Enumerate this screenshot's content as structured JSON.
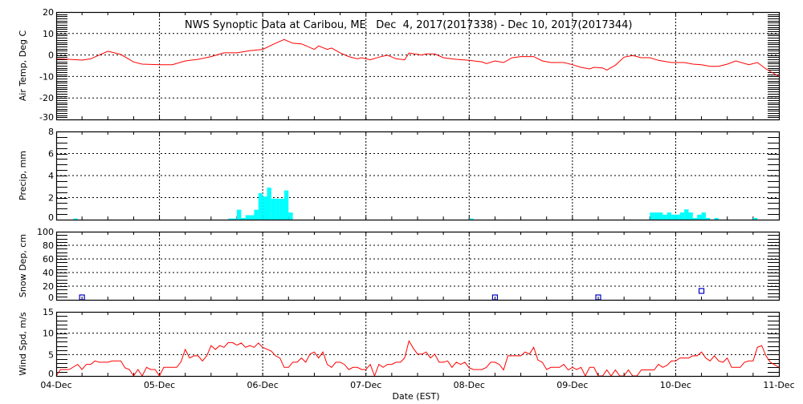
{
  "chart_data": [
    {
      "type": "line",
      "title": "NWS Synoptic Data at Caribou, ME   Dec  4, 2017(2017338) - Dec 10, 2017(2017344)",
      "ylabel": "Air Temp, Deg C",
      "xlabel": "Date (EST)",
      "ylim": [
        -30,
        20
      ],
      "yticks": [
        "20",
        "10",
        "0",
        "-10",
        "-20",
        "-30"
      ],
      "ytick_values": [
        20,
        10,
        0,
        -10,
        -20,
        -30
      ],
      "color": "#ff0000",
      "x_hours": [
        0,
        3,
        6,
        8,
        12,
        15,
        18,
        20,
        24,
        27,
        30,
        33,
        36,
        39,
        42,
        45,
        48,
        51,
        53,
        55,
        57,
        60,
        61,
        63,
        64,
        66,
        68,
        70,
        71,
        73,
        75,
        77,
        79,
        81,
        82,
        83,
        85,
        86,
        88,
        90,
        93,
        96,
        99,
        100,
        102,
        104,
        106,
        108,
        111,
        113,
        115,
        118,
        120,
        122,
        124,
        125,
        127,
        128,
        130,
        132,
        134,
        136,
        138,
        140,
        143,
        146,
        148,
        150,
        152,
        154,
        156,
        158,
        161,
        163,
        165,
        168
      ],
      "values": [
        -1.75,
        -2,
        -2.4,
        -1.8,
        1.75,
        0.25,
        -3.25,
        -4.25,
        -4.5,
        -4.5,
        -2.75,
        -2,
        -0.75,
        1,
        1,
        2,
        2.6,
        5.5,
        7.2,
        5.5,
        5.2,
        2.6,
        4.2,
        2.6,
        3.25,
        1,
        -0.75,
        -1.75,
        -1.25,
        -2.25,
        -1,
        -0.1,
        -1.75,
        -2.25,
        0.9,
        0.6,
        0,
        0.5,
        0.5,
        -1.25,
        -2,
        -2.5,
        -3.25,
        -4,
        -2.75,
        -3.5,
        -1.25,
        -0.75,
        -0.75,
        -2.75,
        -3.5,
        -3.5,
        -4.5,
        -5.75,
        -6.5,
        -5.75,
        -6,
        -7,
        -4.75,
        -1,
        -0.25,
        -1.25,
        -1.25,
        -2.5,
        -3.5,
        -3.5,
        -4.25,
        -4.5,
        -5.25,
        -5.25,
        -4.25,
        -2.75,
        -4.5,
        -3.5,
        -6.5,
        -10
      ]
    },
    {
      "type": "bar",
      "ylabel": "Precip, mm",
      "ylim": [
        0,
        8
      ],
      "yticks": [
        "8",
        "6",
        "4",
        "2",
        "0"
      ],
      "ytick_values": [
        8,
        6,
        4,
        2,
        0
      ],
      "color": "#00ffff",
      "x_hours": [
        4,
        40,
        41,
        42,
        43,
        44,
        45,
        46,
        47,
        48,
        49,
        50,
        51,
        52,
        53,
        54,
        96,
        138,
        139,
        140,
        141,
        142,
        143,
        144,
        145,
        146,
        147,
        148,
        149,
        150,
        151,
        153,
        162
      ],
      "values": [
        0.1,
        0.1,
        0.1,
        0.9,
        0.15,
        0.4,
        0.4,
        0.9,
        2.4,
        2.1,
        2.9,
        1.9,
        1.9,
        1.9,
        2.65,
        0.65,
        0.1,
        0.65,
        0.65,
        0.65,
        0.45,
        0.65,
        0.45,
        0.45,
        0.65,
        0.93,
        0.65,
        0.15,
        0.45,
        0.65,
        0.15,
        0.15,
        0.15
      ]
    },
    {
      "type": "scatter",
      "ylabel": "Snow Dep, cm",
      "ylim": [
        0,
        100
      ],
      "yticks": [
        "100",
        "80",
        "60",
        "40",
        "20",
        "0"
      ],
      "ytick_values": [
        100,
        80,
        60,
        40,
        20,
        0
      ],
      "color": "#0000cc",
      "x_hours": [
        6,
        102,
        126,
        150
      ],
      "values": [
        0,
        0,
        0,
        13
      ]
    },
    {
      "type": "line",
      "ylabel": "Wind Spd, m/s",
      "ylim": [
        0,
        15
      ],
      "yticks": [
        "15",
        "10",
        "5",
        "0"
      ],
      "ytick_values": [
        15,
        10,
        5,
        0
      ],
      "color": "#ff0000",
      "x_hours": [
        0,
        1,
        3,
        5,
        6,
        7,
        8,
        9,
        10,
        12,
        13,
        15,
        16,
        17,
        18,
        19,
        20,
        21,
        22,
        23,
        24,
        25,
        28,
        29,
        30,
        31,
        32,
        33,
        34,
        35,
        36,
        37,
        38,
        39,
        40,
        41,
        42,
        43,
        44,
        45,
        46,
        47,
        48,
        50,
        51,
        52,
        53,
        54,
        55,
        56,
        57,
        58,
        59,
        60,
        61,
        62,
        63,
        64,
        65,
        66,
        67,
        68,
        69,
        70,
        71,
        72,
        73,
        74,
        75,
        76,
        77,
        78,
        79,
        80,
        81,
        82,
        83,
        84,
        85,
        86,
        87,
        88,
        89,
        90,
        91,
        92,
        93,
        94,
        95,
        96,
        97,
        99,
        100,
        101,
        102,
        103,
        104,
        105,
        108,
        109,
        110,
        111,
        112,
        113,
        114,
        115,
        117,
        118,
        119,
        120,
        121,
        122,
        123,
        124,
        125,
        126,
        127,
        128,
        129,
        130,
        131,
        132,
        133,
        134,
        135,
        136,
        139,
        140,
        141,
        142,
        143,
        144,
        145,
        147,
        148,
        149,
        150,
        151,
        152,
        153,
        154,
        155,
        156,
        157,
        159,
        160,
        161,
        162,
        163,
        164,
        165,
        166,
        168
      ],
      "values": [
        0,
        1.5,
        1.5,
        2.7,
        1.5,
        2.7,
        2.7,
        3.5,
        3.2,
        3.2,
        3.5,
        3.5,
        1.9,
        1.5,
        0,
        1.5,
        0,
        2,
        1.5,
        1.5,
        0,
        2,
        2,
        3.3,
        6.2,
        4.2,
        4.7,
        4.7,
        3.5,
        4.7,
        7.1,
        6.2,
        7.1,
        6.7,
        7.8,
        7.8,
        7.2,
        7.7,
        6.7,
        7.1,
        6.7,
        7.7,
        6.7,
        5.8,
        4.7,
        4.2,
        2,
        2,
        3.2,
        3.2,
        4.2,
        3.2,
        5.1,
        5.6,
        4.2,
        5.6,
        2.7,
        2,
        3.2,
        3.2,
        2.7,
        1.5,
        2,
        2,
        1.5,
        1.5,
        2.7,
        0,
        2.7,
        2,
        2.7,
        2.7,
        3.2,
        3.2,
        4.2,
        8.2,
        6.5,
        5.1,
        5.1,
        5.6,
        4.2,
        5.1,
        3.2,
        3.2,
        3.5,
        2,
        3.2,
        2.7,
        3.2,
        1.9,
        1.5,
        1.5,
        2,
        3.2,
        3.2,
        2.7,
        1.4,
        4.7,
        4.7,
        5.6,
        5.1,
        6.7,
        3.7,
        3.2,
        1.5,
        2,
        2,
        2.7,
        1.4,
        2,
        1.5,
        2,
        0,
        2,
        2,
        0,
        0,
        1.4,
        0,
        1.4,
        0,
        0,
        1.4,
        0,
        0,
        1.4,
        1.4,
        2.7,
        2,
        2.5,
        3.5,
        3.5,
        4.2,
        4.2,
        4.7,
        4.7,
        5.6,
        4.2,
        3.5,
        4.7,
        3.5,
        3.2,
        4.2,
        2,
        2,
        3.2,
        3.5,
        3.5,
        6.7,
        7.1,
        4.7,
        3.2,
        2
      ]
    }
  ],
  "x_axis": {
    "label": "Date (EST)",
    "hours_range": [
      0,
      168
    ],
    "tick_labels": [
      "04-Dec",
      "05-Dec",
      "06-Dec",
      "07-Dec",
      "08-Dec",
      "09-Dec",
      "10-Dec",
      "11-Dec"
    ]
  }
}
